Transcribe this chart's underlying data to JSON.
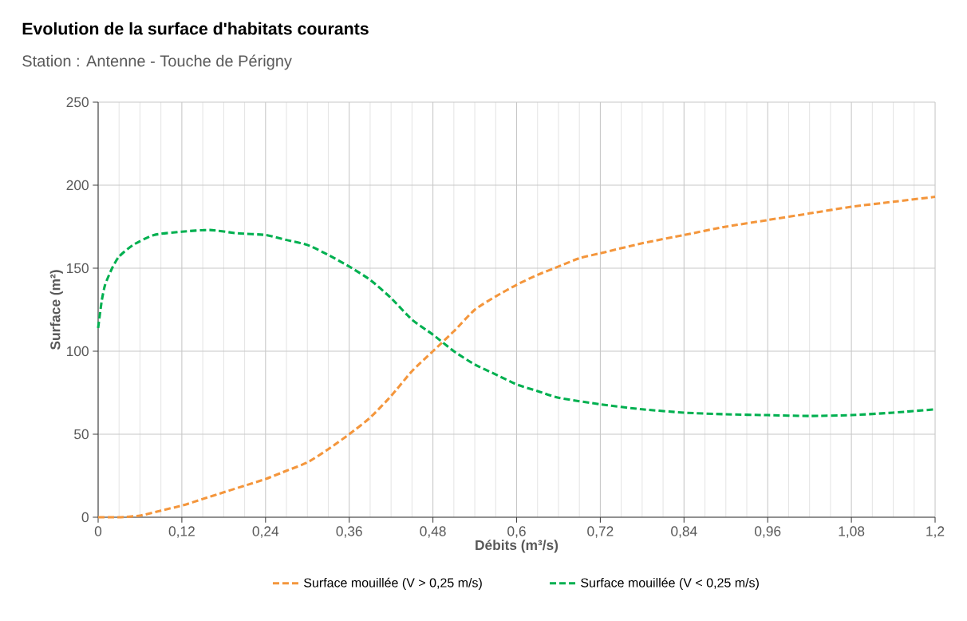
{
  "chart_data": {
    "type": "line",
    "title": "Evolution de la surface d'habitats courants",
    "subtitle": "Station : Antenne - Touche de Périgny",
    "xlabel": "Débits (m³/s)",
    "ylabel": "Surface (m²)",
    "xlim": [
      0,
      1.2
    ],
    "ylim": [
      0,
      250
    ],
    "xticks": [
      0,
      {
        "value": 0.12,
        "label": "0,12"
      },
      {
        "value": 0.24,
        "label": "0,24"
      },
      {
        "value": 0.36,
        "label": "0,36"
      },
      {
        "value": 0.48,
        "label": "0,48"
      },
      {
        "value": 0.6,
        "label": "0,6"
      },
      {
        "value": 0.72,
        "label": "0,72"
      },
      {
        "value": 0.84,
        "label": "0,84"
      },
      {
        "value": 0.96,
        "label": "0,96"
      },
      {
        "value": 1.08,
        "label": "1,08"
      },
      {
        "value": 1.2,
        "label": "1,2"
      }
    ],
    "yticks": [
      0,
      50,
      100,
      150,
      200,
      250
    ],
    "grid": true,
    "legend": "bottom",
    "line_style": "dashed",
    "marker": "none",
    "series": [
      {
        "name": "Surface mouillée (V > 0,25 m/s)",
        "color": "#f4963c",
        "x": [
          0,
          0.03,
          0.06,
          0.09,
          0.12,
          0.15,
          0.18,
          0.21,
          0.24,
          0.27,
          0.3,
          0.33,
          0.36,
          0.39,
          0.42,
          0.45,
          0.48,
          0.51,
          0.54,
          0.57,
          0.6,
          0.63,
          0.66,
          0.69,
          0.72,
          0.78,
          0.84,
          0.9,
          0.96,
          1.02,
          1.08,
          1.14,
          1.2
        ],
        "values": [
          0,
          0,
          1,
          4,
          7,
          11,
          15,
          19,
          23,
          28,
          33,
          41,
          50,
          60,
          73,
          88,
          100,
          112,
          125,
          133,
          140,
          146,
          151,
          156,
          159,
          165,
          170,
          175,
          179,
          183,
          187,
          190,
          193
        ]
      },
      {
        "name": "Surface mouillée (V < 0,25 m/s)",
        "color": "#00b050",
        "x": [
          0,
          0.005,
          0.01,
          0.02,
          0.03,
          0.05,
          0.08,
          0.12,
          0.16,
          0.2,
          0.24,
          0.27,
          0.3,
          0.33,
          0.36,
          0.39,
          0.42,
          0.45,
          0.48,
          0.51,
          0.54,
          0.57,
          0.6,
          0.63,
          0.66,
          0.72,
          0.78,
          0.84,
          0.9,
          0.96,
          1.02,
          1.08,
          1.14,
          1.2
        ],
        "values": [
          114,
          130,
          140,
          150,
          157,
          164,
          170,
          172,
          173,
          171,
          170,
          167,
          164,
          158,
          151,
          143,
          132,
          119,
          110,
          100,
          92,
          86,
          80,
          76,
          72,
          68,
          65,
          63,
          62,
          61.5,
          61,
          61.5,
          63,
          65
        ]
      }
    ]
  }
}
